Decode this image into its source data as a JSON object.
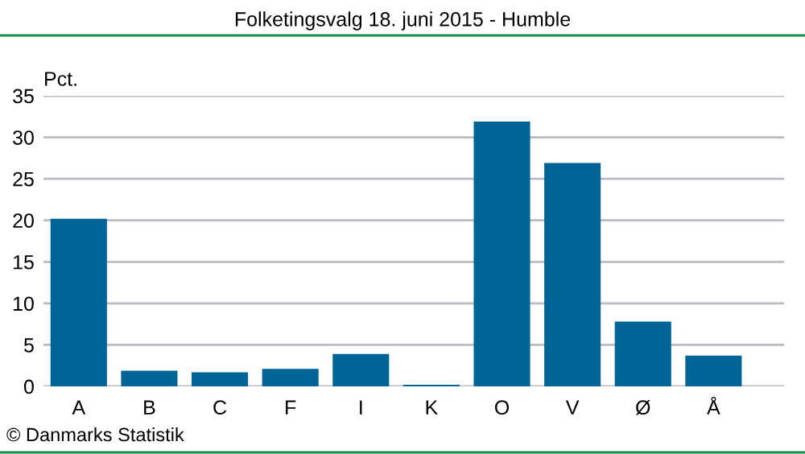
{
  "chart_data": {
    "type": "bar",
    "title": "Folketingsvalg 18. juni 2015 - Humble",
    "ylabel": "Pct.",
    "categories": [
      "A",
      "B",
      "C",
      "F",
      "I",
      "K",
      "O",
      "V",
      "Ø",
      "Å"
    ],
    "values": [
      20.2,
      1.9,
      1.7,
      2.1,
      3.9,
      0.2,
      31.9,
      26.9,
      7.8,
      3.7
    ],
    "color": "#006496",
    "ylim": [
      0,
      35
    ],
    "yticks": [
      0,
      5,
      10,
      15,
      20,
      25,
      30,
      35
    ],
    "grid": "y",
    "annotations": [
      "© Danmarks Statistik"
    ]
  }
}
